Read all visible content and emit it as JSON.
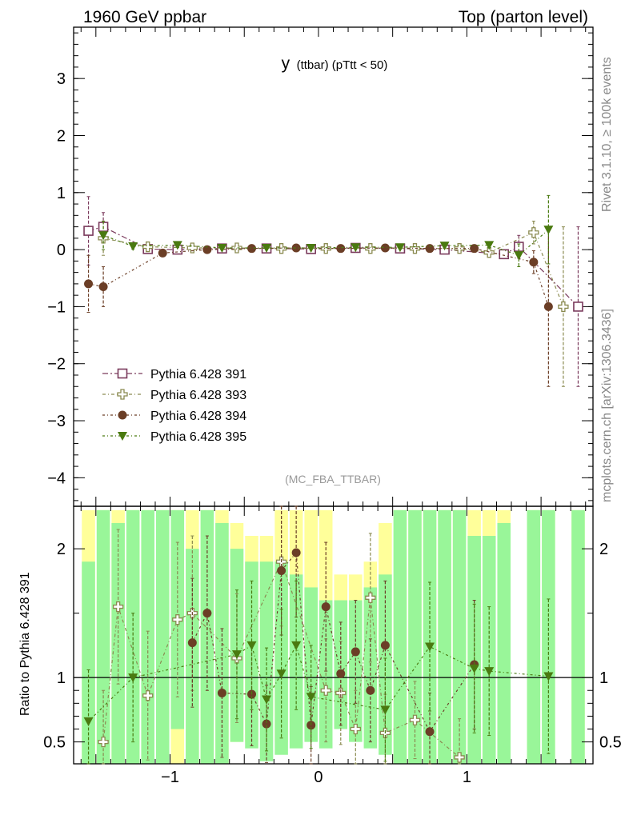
{
  "header": {
    "left": "1960 GeV ppbar",
    "right": "Top (parton level)"
  },
  "side_labels": {
    "rivet": "Rivet 3.1.10, ≥ 100k events",
    "mcplots": "mcplots.cern.ch [arXiv:1306.3436]"
  },
  "analysis_tag": "(MC_FBA_TTBAR)",
  "colors": {
    "s391": "#7a3a5c",
    "s393": "#8a8a50",
    "s394": "#6b3e26",
    "s395": "#4a7a10",
    "band_green": "#99f699",
    "band_yellow": "#ffff9a"
  },
  "chart_data": [
    {
      "type": "scatter",
      "title": "y (ttbar) (pTtt < 50)",
      "title_main": "y",
      "title_rest": "(ttbar) (pTtt < 50)",
      "xlim": [
        -1.65,
        1.85
      ],
      "ylim": [
        -4.5,
        3.9
      ],
      "yticks": [
        3,
        2,
        1,
        0,
        -1,
        -2,
        -3,
        -4
      ],
      "ytick_labels": [
        "3",
        "2",
        "1",
        "0",
        "−1",
        "−2",
        "−3",
        "−4"
      ],
      "legend_position": "lower-left",
      "series": [
        {
          "name": "Pythia 6.428 391",
          "marker": "open-square",
          "points": [
            [
              -1.55,
              0.33,
              0.6
            ],
            [
              -1.45,
              0.4,
              0.25
            ],
            [
              -1.15,
              0.01,
              0.05
            ],
            [
              -0.95,
              0.0,
              0.03
            ],
            [
              -0.65,
              0.02,
              0.02
            ],
            [
              -0.35,
              0.02,
              0.02
            ],
            [
              -0.05,
              0.01,
              0.02
            ],
            [
              0.25,
              0.03,
              0.02
            ],
            [
              0.55,
              0.02,
              0.02
            ],
            [
              0.85,
              0.0,
              0.03
            ],
            [
              1.25,
              -0.08,
              0.08
            ],
            [
              1.35,
              0.05,
              0.2
            ],
            [
              1.75,
              -1.0,
              1.4
            ]
          ]
        },
        {
          "name": "Pythia 6.428 393",
          "marker": "open-cross",
          "points": [
            [
              -1.45,
              0.2,
              0.3
            ],
            [
              -1.15,
              0.05,
              0.06
            ],
            [
              -0.85,
              0.03,
              0.03
            ],
            [
              -0.55,
              0.03,
              0.02
            ],
            [
              -0.25,
              0.02,
              0.02
            ],
            [
              0.05,
              0.02,
              0.02
            ],
            [
              0.35,
              0.02,
              0.02
            ],
            [
              0.65,
              0.02,
              0.02
            ],
            [
              0.95,
              0.02,
              0.03
            ],
            [
              1.15,
              -0.05,
              0.05
            ],
            [
              1.45,
              0.3,
              0.2
            ],
            [
              1.65,
              -1.0,
              1.4
            ]
          ]
        },
        {
          "name": "Pythia 6.428 394",
          "marker": "filled-circle",
          "points": [
            [
              -1.55,
              -0.6,
              0.5
            ],
            [
              -1.45,
              -0.65,
              0.35
            ],
            [
              -1.05,
              -0.06,
              0.05
            ],
            [
              -0.75,
              0.0,
              0.03
            ],
            [
              -0.45,
              0.02,
              0.02
            ],
            [
              -0.15,
              0.03,
              0.02
            ],
            [
              0.15,
              0.02,
              0.02
            ],
            [
              0.45,
              0.03,
              0.02
            ],
            [
              0.75,
              0.02,
              0.02
            ],
            [
              1.05,
              0.02,
              0.03
            ],
            [
              1.45,
              -0.22,
              0.2
            ],
            [
              1.55,
              -1.0,
              1.4
            ]
          ]
        },
        {
          "name": "Pythia 6.428 395",
          "marker": "filled-triangle-down",
          "points": [
            [
              -1.45,
              0.25,
              0.25
            ],
            [
              -1.25,
              0.06,
              0.05
            ],
            [
              -0.95,
              0.08,
              0.04
            ],
            [
              -0.65,
              0.03,
              0.02
            ],
            [
              -0.35,
              0.03,
              0.02
            ],
            [
              -0.05,
              0.03,
              0.02
            ],
            [
              0.25,
              0.04,
              0.02
            ],
            [
              0.55,
              0.04,
              0.02
            ],
            [
              0.85,
              0.07,
              0.03
            ],
            [
              1.15,
              0.08,
              0.05
            ],
            [
              1.35,
              -0.1,
              0.2
            ],
            [
              1.55,
              0.35,
              0.6
            ]
          ]
        }
      ]
    },
    {
      "type": "scatter",
      "ylabel": "Ratio to Pythia 6.428 391",
      "xlim": [
        -1.65,
        1.85
      ],
      "ylim": [
        0.33,
        2.33
      ],
      "yticks": [
        0.5,
        1,
        2
      ],
      "ytick_labels": [
        "0.5",
        "1",
        "2"
      ],
      "xticks": [
        -1,
        0,
        1
      ],
      "xtick_labels": [
        "−1",
        "0",
        "1"
      ],
      "reference_line": 1,
      "band_bins": [
        [
          -1.6,
          -1.5,
          2.3,
          1.9,
          0.3,
          0.3
        ],
        [
          -1.5,
          -1.4,
          2.3,
          2.3,
          0.3,
          0.3
        ],
        [
          -1.4,
          -1.3,
          2.3,
          2.2,
          0.3,
          0.3
        ],
        [
          -1.3,
          -1.2,
          2.3,
          2.3,
          0.3,
          0.3
        ],
        [
          -1.2,
          -1.1,
          2.3,
          2.3,
          0.3,
          0.3
        ],
        [
          -1.1,
          -1.0,
          2.3,
          2.3,
          0.3,
          0.3
        ],
        [
          -1.0,
          -0.9,
          2.3,
          2.3,
          0.6,
          0.3
        ],
        [
          -0.9,
          -0.8,
          2.3,
          2.0,
          0.3,
          0.3
        ],
        [
          -0.8,
          -0.7,
          2.3,
          2.3,
          0.3,
          0.3
        ],
        [
          -0.7,
          -0.6,
          2.3,
          2.2,
          0.3,
          0.3
        ],
        [
          -0.6,
          -0.5,
          2.2,
          2.0,
          0.5,
          0.5
        ],
        [
          -0.5,
          -0.4,
          2.1,
          1.9,
          0.45,
          0.5
        ],
        [
          -0.4,
          -0.3,
          2.1,
          1.9,
          0.35,
          0.7
        ],
        [
          -0.3,
          -0.2,
          2.3,
          1.9,
          0.4,
          0.5
        ],
        [
          -0.2,
          -0.1,
          2.3,
          1.8,
          0.45,
          0.55
        ],
        [
          -0.1,
          0.0,
          2.3,
          1.7,
          0.5,
          0.6
        ],
        [
          0.0,
          0.1,
          2.3,
          1.6,
          0.45,
          0.55
        ],
        [
          0.1,
          0.2,
          1.8,
          1.6,
          0.6,
          0.7
        ],
        [
          0.2,
          0.3,
          1.8,
          1.6,
          0.5,
          0.7
        ],
        [
          0.3,
          0.4,
          1.9,
          1.7,
          0.45,
          0.6
        ],
        [
          0.4,
          0.5,
          2.2,
          1.8,
          0.4,
          0.5
        ],
        [
          0.5,
          0.6,
          2.3,
          2.3,
          0.3,
          0.3
        ],
        [
          0.6,
          0.7,
          2.3,
          2.3,
          0.3,
          0.3
        ],
        [
          0.7,
          0.8,
          2.3,
          2.3,
          0.3,
          0.3
        ],
        [
          0.8,
          0.9,
          2.3,
          2.3,
          0.3,
          0.3
        ],
        [
          0.9,
          1.0,
          2.3,
          2.3,
          0.3,
          0.3
        ],
        [
          1.0,
          1.1,
          2.3,
          2.1,
          0.3,
          0.3
        ],
        [
          1.1,
          1.2,
          2.3,
          2.1,
          0.3,
          0.3
        ],
        [
          1.2,
          1.3,
          2.3,
          2.2,
          0.3,
          0.3
        ],
        [
          1.4,
          1.5,
          2.3,
          2.3,
          0.3,
          0.3
        ],
        [
          1.5,
          1.6,
          2.3,
          2.3,
          0.3,
          0.3
        ],
        [
          1.7,
          1.8,
          2.3,
          2.3,
          0.3,
          0.3
        ]
      ],
      "series": [
        {
          "name": "Pythia 6.428 393",
          "marker": "open-cross",
          "points": [
            [
              -1.45,
              0.5,
              0.4
            ],
            [
              -1.35,
              1.55,
              0.6
            ],
            [
              -1.15,
              0.86,
              0.5
            ],
            [
              -0.95,
              1.45,
              0.6
            ],
            [
              -0.85,
              1.5,
              0.6
            ],
            [
              -0.55,
              1.15,
              0.5
            ],
            [
              -0.25,
              1.9,
              0.5
            ],
            [
              0.05,
              0.9,
              0.4
            ],
            [
              0.15,
              0.88,
              0.4
            ],
            [
              0.25,
              0.6,
              0.3
            ],
            [
              0.35,
              1.62,
              0.5
            ],
            [
              0.45,
              0.57,
              0.3
            ],
            [
              0.65,
              0.67,
              0.3
            ],
            [
              0.95,
              0.38,
              0.3
            ]
          ]
        },
        {
          "name": "Pythia 6.428 394",
          "marker": "filled-circle",
          "points": [
            [
              -0.85,
              1.27,
              0.5
            ],
            [
              -0.75,
              1.5,
              0.6
            ],
            [
              -0.65,
              0.88,
              0.5
            ],
            [
              -0.45,
              0.87,
              0.4
            ],
            [
              -0.35,
              0.64,
              0.3
            ],
            [
              -0.25,
              1.83,
              0.5
            ],
            [
              -0.15,
              1.97,
              0.5
            ],
            [
              -0.05,
              0.63,
              0.3
            ],
            [
              0.05,
              1.55,
              0.5
            ],
            [
              0.15,
              1.03,
              0.4
            ],
            [
              0.25,
              1.2,
              0.4
            ],
            [
              0.35,
              0.9,
              0.4
            ],
            [
              0.45,
              1.25,
              0.5
            ],
            [
              0.75,
              0.58,
              0.3
            ],
            [
              1.05,
              1.1,
              0.5
            ]
          ]
        },
        {
          "name": "Pythia 6.428 395",
          "marker": "filled-triangle-down",
          "points": [
            [
              -1.55,
              0.66,
              0.4
            ],
            [
              -1.25,
              1.0,
              0.5
            ],
            [
              -0.55,
              1.18,
              0.5
            ],
            [
              -0.45,
              1.25,
              0.5
            ],
            [
              -0.35,
              0.83,
              0.4
            ],
            [
              -0.25,
              1.03,
              0.5
            ],
            [
              -0.15,
              1.25,
              0.5
            ],
            [
              -0.05,
              0.85,
              0.4
            ],
            [
              0.45,
              0.75,
              0.4
            ],
            [
              0.75,
              1.24,
              0.5
            ],
            [
              1.05,
              1.07,
              0.5
            ],
            [
              1.15,
              1.05,
              0.5
            ],
            [
              1.55,
              1.01,
              0.6
            ]
          ]
        }
      ]
    }
  ]
}
